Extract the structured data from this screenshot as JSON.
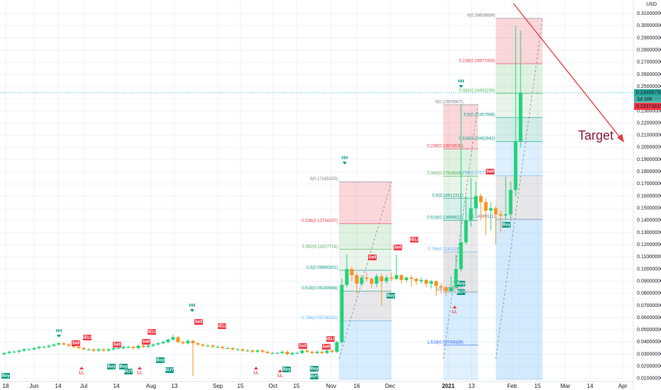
{
  "chart_data": {
    "type": "candlestick",
    "currency": "USD",
    "ylim": [
      0,
      0.32
    ],
    "yticks": [
      {
        "value": 0.01,
        "label": "0.01000000"
      },
      {
        "value": 0.02,
        "label": "0.02000000"
      },
      {
        "value": 0.03,
        "label": "0.03000000"
      },
      {
        "value": 0.04,
        "label": "0.04000000"
      },
      {
        "value": 0.05,
        "label": "0.05000000"
      },
      {
        "value": 0.06,
        "label": "0.06000000"
      },
      {
        "value": 0.07,
        "label": "0.07000000"
      },
      {
        "value": 0.08,
        "label": "0.08000000"
      },
      {
        "value": 0.09,
        "label": "0.09000000"
      },
      {
        "value": 0.1,
        "label": "0.10000000"
      },
      {
        "value": 0.11,
        "label": "0.11000000"
      },
      {
        "value": 0.12,
        "label": "0.12000000"
      },
      {
        "value": 0.13,
        "label": "0.13000000"
      },
      {
        "value": 0.14,
        "label": "0.14000000"
      },
      {
        "value": 0.15,
        "label": "0.15000000"
      },
      {
        "value": 0.16,
        "label": "0.16000000"
      },
      {
        "value": 0.17,
        "label": "0.17000000"
      },
      {
        "value": 0.18,
        "label": "0.18000000"
      },
      {
        "value": 0.19,
        "label": "0.19000000"
      },
      {
        "value": 0.2,
        "label": "0.20000000"
      },
      {
        "value": 0.21,
        "label": "0.21000000"
      },
      {
        "value": 0.22,
        "label": "0.22000000"
      },
      {
        "value": 0.23,
        "label": "0.23000000"
      },
      {
        "value": 0.24,
        "label": "0.24000000"
      },
      {
        "value": 0.25,
        "label": "0.25000000"
      },
      {
        "value": 0.26,
        "label": "0.26000000"
      },
      {
        "value": 0.27,
        "label": "0.27000000"
      },
      {
        "value": 0.28,
        "label": "0.28000000"
      },
      {
        "value": 0.29,
        "label": "0.29000000"
      },
      {
        "value": 0.3,
        "label": "0.30000000"
      },
      {
        "value": 0.31,
        "label": "0.31000000"
      }
    ],
    "grid": true,
    "up_color": "#22d17a",
    "down_color": "#f7931e",
    "xticks": [
      "18",
      "Jun",
      "14",
      "Jul",
      "14",
      "Aug",
      "13",
      "Sep",
      "15",
      "Oct",
      "15",
      "Nov",
      "16",
      "Dec",
      "2021",
      "13",
      "Feb",
      "15",
      "Mar",
      "14",
      "Apr"
    ],
    "candles": [
      [
        0.03,
        0.032,
        0.029,
        0.031
      ],
      [
        0.031,
        0.033,
        0.03,
        0.032
      ],
      [
        0.032,
        0.033,
        0.031,
        0.032
      ],
      [
        0.032,
        0.034,
        0.031,
        0.033
      ],
      [
        0.033,
        0.035,
        0.032,
        0.034
      ],
      [
        0.034,
        0.035,
        0.033,
        0.034
      ],
      [
        0.034,
        0.036,
        0.033,
        0.035
      ],
      [
        0.035,
        0.037,
        0.034,
        0.036
      ],
      [
        0.036,
        0.037,
        0.035,
        0.036
      ],
      [
        0.036,
        0.038,
        0.035,
        0.037
      ],
      [
        0.037,
        0.039,
        0.036,
        0.038
      ],
      [
        0.038,
        0.04,
        0.037,
        0.039
      ],
      [
        0.039,
        0.04,
        0.037,
        0.038
      ],
      [
        0.038,
        0.039,
        0.036,
        0.037
      ],
      [
        0.037,
        0.038,
        0.035,
        0.036
      ],
      [
        0.036,
        0.037,
        0.034,
        0.035
      ],
      [
        0.035,
        0.036,
        0.033,
        0.034
      ],
      [
        0.034,
        0.035,
        0.033,
        0.034
      ],
      [
        0.034,
        0.035,
        0.032,
        0.033
      ],
      [
        0.033,
        0.035,
        0.032,
        0.034
      ],
      [
        0.034,
        0.035,
        0.032,
        0.033
      ],
      [
        0.033,
        0.035,
        0.032,
        0.034
      ],
      [
        0.034,
        0.036,
        0.033,
        0.035
      ],
      [
        0.035,
        0.036,
        0.034,
        0.035
      ],
      [
        0.035,
        0.037,
        0.034,
        0.036
      ],
      [
        0.036,
        0.037,
        0.035,
        0.036
      ],
      [
        0.036,
        0.037,
        0.034,
        0.035
      ],
      [
        0.035,
        0.038,
        0.034,
        0.037
      ],
      [
        0.037,
        0.038,
        0.035,
        0.036
      ],
      [
        0.036,
        0.038,
        0.035,
        0.037
      ],
      [
        0.037,
        0.039,
        0.036,
        0.038
      ],
      [
        0.038,
        0.04,
        0.037,
        0.039
      ],
      [
        0.039,
        0.041,
        0.038,
        0.04
      ],
      [
        0.04,
        0.043,
        0.039,
        0.042
      ],
      [
        0.042,
        0.046,
        0.041,
        0.044
      ],
      [
        0.044,
        0.045,
        0.039,
        0.04
      ],
      [
        0.04,
        0.041,
        0.038,
        0.039
      ],
      [
        0.039,
        0.042,
        0.038,
        0.041
      ],
      [
        0.041,
        0.042,
        0.012,
        0.039
      ],
      [
        0.039,
        0.04,
        0.037,
        0.038
      ],
      [
        0.038,
        0.039,
        0.036,
        0.037
      ],
      [
        0.037,
        0.038,
        0.036,
        0.037
      ],
      [
        0.037,
        0.038,
        0.035,
        0.036
      ],
      [
        0.036,
        0.037,
        0.035,
        0.036
      ],
      [
        0.036,
        0.037,
        0.034,
        0.035
      ],
      [
        0.035,
        0.036,
        0.034,
        0.035
      ],
      [
        0.035,
        0.036,
        0.033,
        0.034
      ],
      [
        0.034,
        0.035,
        0.033,
        0.034
      ],
      [
        0.034,
        0.035,
        0.032,
        0.033
      ],
      [
        0.033,
        0.034,
        0.032,
        0.033
      ],
      [
        0.033,
        0.034,
        0.031,
        0.032
      ],
      [
        0.032,
        0.034,
        0.031,
        0.033
      ],
      [
        0.033,
        0.034,
        0.031,
        0.032
      ],
      [
        0.032,
        0.033,
        0.03,
        0.031
      ],
      [
        0.031,
        0.032,
        0.03,
        0.031
      ],
      [
        0.031,
        0.032,
        0.03,
        0.031
      ],
      [
        0.031,
        0.033,
        0.03,
        0.032
      ],
      [
        0.032,
        0.033,
        0.029,
        0.03
      ],
      [
        0.03,
        0.032,
        0.029,
        0.031
      ],
      [
        0.031,
        0.032,
        0.03,
        0.031
      ],
      [
        0.031,
        0.034,
        0.03,
        0.033
      ],
      [
        0.033,
        0.034,
        0.031,
        0.032
      ],
      [
        0.032,
        0.033,
        0.03,
        0.031
      ],
      [
        0.031,
        0.033,
        0.03,
        0.032
      ],
      [
        0.032,
        0.033,
        0.03,
        0.031
      ],
      [
        0.031,
        0.034,
        0.03,
        0.033
      ],
      [
        0.033,
        0.034,
        0.031,
        0.032
      ],
      [
        0.032,
        0.041,
        0.031,
        0.04
      ],
      [
        0.04,
        0.092,
        0.039,
        0.087
      ],
      [
        0.087,
        0.112,
        0.085,
        0.1
      ],
      [
        0.1,
        0.102,
        0.09,
        0.095
      ],
      [
        0.095,
        0.097,
        0.08,
        0.088
      ],
      [
        0.088,
        0.095,
        0.086,
        0.093
      ],
      [
        0.093,
        0.097,
        0.09,
        0.092
      ],
      [
        0.092,
        0.093,
        0.084,
        0.088
      ],
      [
        0.088,
        0.096,
        0.085,
        0.094
      ],
      [
        0.094,
        0.096,
        0.07,
        0.09
      ],
      [
        0.09,
        0.095,
        0.088,
        0.093
      ],
      [
        0.093,
        0.097,
        0.09,
        0.092
      ],
      [
        0.092,
        0.112,
        0.091,
        0.095
      ],
      [
        0.095,
        0.096,
        0.088,
        0.091
      ],
      [
        0.091,
        0.094,
        0.089,
        0.093
      ],
      [
        0.093,
        0.095,
        0.086,
        0.092
      ],
      [
        0.092,
        0.093,
        0.087,
        0.09
      ],
      [
        0.09,
        0.093,
        0.088,
        0.091
      ],
      [
        0.091,
        0.092,
        0.085,
        0.088
      ],
      [
        0.088,
        0.091,
        0.084,
        0.09
      ],
      [
        0.09,
        0.091,
        0.078,
        0.086
      ],
      [
        0.086,
        0.088,
        0.08,
        0.085
      ],
      [
        0.085,
        0.086,
        0.078,
        0.082
      ],
      [
        0.082,
        0.094,
        0.081,
        0.085
      ],
      [
        0.085,
        0.112,
        0.084,
        0.1
      ],
      [
        0.1,
        0.235,
        0.098,
        0.122
      ],
      [
        0.122,
        0.16,
        0.12,
        0.14
      ],
      [
        0.14,
        0.175,
        0.135,
        0.15
      ],
      [
        0.15,
        0.172,
        0.145,
        0.16
      ],
      [
        0.16,
        0.162,
        0.14,
        0.155
      ],
      [
        0.155,
        0.158,
        0.128,
        0.148
      ],
      [
        0.148,
        0.155,
        0.132,
        0.15
      ],
      [
        0.15,
        0.152,
        0.12,
        0.145
      ],
      [
        0.145,
        0.148,
        0.13,
        0.144
      ],
      [
        0.144,
        0.176,
        0.14,
        0.145
      ],
      [
        0.145,
        0.172,
        0.14,
        0.165
      ],
      [
        0.165,
        0.3,
        0.16,
        0.205
      ],
      [
        0.205,
        0.296,
        0.2,
        0.245
      ]
    ],
    "fibs": [
      {
        "levels": [
          {
            "value": 0.17165325,
            "label": "0(0.17165325)"
          },
          {
            "value": 0.13734297,
            "label": "0.236(0.13734297)"
          },
          {
            "value": 0.11617714,
            "label": "0.382(0.11617714)"
          },
          {
            "value": 0.09896301,
            "label": "0.5(0.09896301)"
          },
          {
            "value": 0.08180688,
            "label": "0.618(0.08180688)"
          },
          {
            "value": 0.05738332,
            "label": "0.786(0.05738332)"
          }
        ]
      },
      {
        "levels": [
          {
            "value": 0.23505907,
            "label": "0(0.23505907)"
          },
          {
            "value": 0.1987453,
            "label": "0.236(0.19874530)"
          },
          {
            "value": 0.17628,
            "label": "0.382(0.17628000)"
          },
          {
            "value": 0.15812311,
            "label": "0.5(0.15812311)"
          },
          {
            "value": 0.13996622,
            "label": "0.618(0.13996622)"
          },
          {
            "value": 0.11411924,
            "label": "0.786(0.11411924)"
          },
          {
            "value": 0.08118751,
            "label": "1(0.08118751)"
          },
          {
            "value": 0.03743428,
            "label": "1.618(0.03743428)"
          }
        ]
      },
      {
        "levels": [
          {
            "value": 0.30608889,
            "label": "0(0.30608889)"
          },
          {
            "value": 0.268774,
            "label": "0.236(0.26877400)"
          },
          {
            "value": 0.2443323,
            "label": "0.382(0.24433230)"
          },
          {
            "value": 0.22457986,
            "label": "0.5(0.22457986)"
          },
          {
            "value": 0.20482642,
            "label": "0.618(0.20482642)"
          },
          {
            "value": 0.17670298,
            "label": "0.786(0.17670298)"
          },
          {
            "value": 0.14089111,
            "label": "1(0.14089111)"
          }
        ]
      }
    ],
    "signals": [
      "Buy",
      "HH",
      "Sell",
      "SELL",
      "LL",
      "Buy",
      "Sell",
      "Buy",
      "BUY",
      "LL",
      "Sell",
      "SELL",
      "Buy",
      "BUY",
      "HH",
      "Sell",
      "SELL",
      "LL",
      "LL",
      "Buy",
      "Sell",
      "Sell",
      "SELL",
      "Buy",
      "BUY",
      "HH",
      "Sell",
      "Sell",
      "SELL",
      "Buy",
      "HH",
      "Buy",
      "BUY",
      "LL",
      "Sell",
      "Buy"
    ],
    "last_price": {
      "value": 0.2449875,
      "label": "0.24498750"
    },
    "countdown": "1d 10h",
    "ref_price": {
      "value": 0.23373815,
      "label": "0.23373815"
    },
    "annotation": "Target"
  }
}
